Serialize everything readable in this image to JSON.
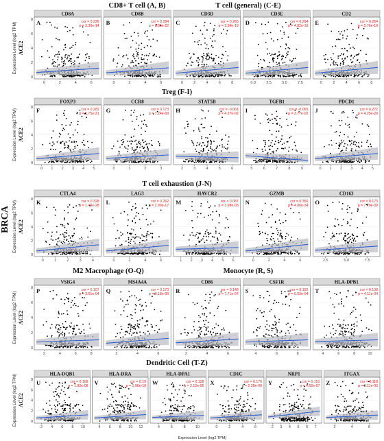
{
  "figure_label": "BRCA",
  "row_titles": [
    {
      "left": "CD8+ T cell (A, B)",
      "right": "T cell (general) (C-E)"
    },
    {
      "left": "Treg (F-I)",
      "right": ""
    },
    {
      "left": "T cell exhaustion (J-N)",
      "right": ""
    },
    {
      "left": "M2 Macrophage (O-Q)",
      "right": "Monocyte (R, S)"
    },
    {
      "left": "Dendritic Cell (T-Z)",
      "right": ""
    }
  ],
  "ylabel": "Expression Level (log2 TPM)",
  "y_gene": "ACE2",
  "xlabel": "Expression Level (log2 TPM)",
  "colors": {
    "points": "#000000",
    "fit": "#2f5fd0",
    "band": "#b9bcc4",
    "stats": "#e0201b",
    "strip": "#d9d9d9"
  },
  "chart_data": [
    {
      "type": "scatter",
      "letter": "A",
      "gene": "CD8A",
      "stat_cor": "cor = 0.226",
      "stat_p": "p = 3.36e-14",
      "ylim": [
        0,
        8
      ],
      "yticks": [
        "0",
        "2",
        "4",
        "6",
        "8"
      ],
      "xlim": [
        -0.5,
        7
      ],
      "xticks": [
        "0",
        "2",
        "4",
        "6"
      ],
      "fit": [
        0.6,
        1.2
      ],
      "seed": 11
    },
    {
      "type": "scatter",
      "letter": "B",
      "gene": "CD8B",
      "stat_cor": "cor = 0.284",
      "stat_p": "p = 8.86e-22",
      "ylim": [
        0,
        8
      ],
      "yticks": [],
      "xlim": [
        -0.5,
        6.5
      ],
      "xticks": [
        "0",
        "2",
        "4",
        "6"
      ],
      "fit": [
        0.55,
        1.25
      ],
      "seed": 12
    },
    {
      "type": "scatter",
      "letter": "C",
      "gene": "CD3D",
      "stat_cor": "cor = 0.265",
      "stat_p": "p = 3.54e-19",
      "ylim": [
        0,
        8
      ],
      "yticks": [],
      "xlim": [
        -0.5,
        8.5
      ],
      "xticks": [
        "0",
        "2",
        "4",
        "6",
        "8"
      ],
      "fit": [
        0.5,
        1.3
      ],
      "seed": 13
    },
    {
      "type": "scatter",
      "letter": "D",
      "gene": "CD3E",
      "stat_cor": "cor = 0.264",
      "stat_p": "p = 4.82e-19",
      "ylim": [
        0,
        8
      ],
      "yticks": [],
      "xlim": [
        -0.5,
        8.5
      ],
      "xticks": [
        "0.0",
        "2.5",
        "5.0",
        "7.5"
      ],
      "fit": [
        0.5,
        1.3
      ],
      "seed": 14
    },
    {
      "type": "scatter",
      "letter": "E",
      "gene": "CD2",
      "stat_cor": "cor = 0.264",
      "stat_p": "p = 5.76e-19",
      "ylim": [
        0,
        8
      ],
      "yticks": [],
      "xlim": [
        -0.5,
        8.5
      ],
      "xticks": [
        "0",
        "2",
        "4",
        "6",
        "8"
      ],
      "fit": [
        0.5,
        1.3
      ],
      "seed": 15
    },
    {
      "type": "scatter",
      "letter": "F",
      "gene": "FOXP3",
      "stat_cor": "cor = 0.282",
      "stat_p": "p = 1.75e-21",
      "ylim": [
        0,
        8
      ],
      "yticks": [
        "0",
        "2",
        "4",
        "6",
        "8"
      ],
      "xlim": [
        -0.5,
        5.5
      ],
      "xticks": [
        "0",
        "1",
        "2",
        "3",
        "4",
        "5"
      ],
      "fit": [
        0.55,
        1.3
      ],
      "seed": 21
    },
    {
      "type": "scatter",
      "letter": "G",
      "gene": "CCR8",
      "stat_cor": "cor = 0.173",
      "stat_p": "p = 7.24e-09",
      "ylim": [
        0,
        8
      ],
      "yticks": [],
      "xlim": [
        -0.5,
        3.5
      ],
      "xticks": [
        "0",
        "1",
        "2",
        "3"
      ],
      "fit": [
        0.6,
        1.1
      ],
      "seed": 22
    },
    {
      "type": "scatter",
      "letter": "H",
      "gene": "STAT5B",
      "stat_cor": "cor = -0.061",
      "stat_p": "p = 4.27e-02",
      "ylim": [
        0,
        8
      ],
      "yticks": [],
      "xlim": [
        1.5,
        7
      ],
      "xticks": [
        "2",
        "3",
        "4",
        "5",
        "6"
      ],
      "fit": [
        0.9,
        0.7
      ],
      "seed": 23
    },
    {
      "type": "scatter",
      "letter": "I",
      "gene": "TGFB1",
      "stat_cor": "cor = -0.065",
      "stat_p": "p = 3.77e-02",
      "ylim": [
        0,
        8
      ],
      "yticks": [],
      "xlim": [
        4,
        9.5
      ],
      "xticks": [
        "5",
        "6",
        "7",
        "8",
        "9"
      ],
      "fit": [
        1.0,
        0.3
      ],
      "seed": 24
    },
    {
      "type": "scatter",
      "letter": "J",
      "gene": "PDCD1",
      "stat_cor": "cor = 0.272",
      "stat_p": "p = 4.25e-20",
      "ylim": [
        0,
        8
      ],
      "yticks": [],
      "xlim": [
        -0.5,
        5.5
      ],
      "xticks": [
        "0",
        "1",
        "2",
        "3",
        "4",
        "5"
      ],
      "fit": [
        0.55,
        1.3
      ],
      "seed": 25
    },
    {
      "type": "scatter",
      "letter": "K",
      "gene": "CTLA4",
      "stat_cor": "cor = 0.328",
      "stat_p": "p = 1.40e-28",
      "ylim": [
        0,
        8
      ],
      "yticks": [
        "0",
        "2",
        "4",
        "6",
        "8"
      ],
      "xlim": [
        -0.5,
        5
      ],
      "xticks": [
        "0",
        "1",
        "2",
        "3",
        "4"
      ],
      "fit": [
        0.5,
        1.4
      ],
      "seed": 31
    },
    {
      "type": "scatter",
      "letter": "L",
      "gene": "LAG3",
      "stat_cor": "cor = 0.262",
      "stat_p": "p = 2.99e-17",
      "ylim": [
        0,
        8
      ],
      "yticks": [],
      "xlim": [
        -0.5,
        7
      ],
      "xticks": [
        "0",
        "2",
        "4",
        "6"
      ],
      "fit": [
        0.5,
        1.3
      ],
      "seed": 32
    },
    {
      "type": "scatter",
      "letter": "M",
      "gene": "HAVCR2",
      "stat_cor": "cor = 0.087",
      "stat_p": "p = 3.98e-03",
      "ylim": [
        0,
        8
      ],
      "yticks": [],
      "xlim": [
        0.5,
        6
      ],
      "xticks": [
        "1",
        "2",
        "3",
        "4",
        "5",
        "6"
      ],
      "fit": [
        0.75,
        1.0
      ],
      "seed": 33
    },
    {
      "type": "scatter",
      "letter": "N",
      "gene": "GZMB",
      "stat_cor": "cor = 0.356",
      "stat_p": "p = 4.06e-34",
      "ylim": [
        0,
        8
      ],
      "yticks": [],
      "xlim": [
        -0.5,
        8
      ],
      "xticks": [
        "0",
        "2",
        "4",
        "6"
      ],
      "fit": [
        0.5,
        1.45
      ],
      "seed": 34
    },
    {
      "type": "scatter",
      "letter": "O",
      "gene": "CD163",
      "stat_cor": "cor = 0.173",
      "stat_p": "p = 7.70e-09",
      "ylim": [
        0,
        8
      ],
      "yticks": [],
      "xlim": [
        1,
        8.5
      ],
      "xticks": [
        "2.5",
        "5.0",
        "7.5"
      ],
      "fit": [
        0.6,
        1.2
      ],
      "seed": 35
    },
    {
      "type": "scatter",
      "letter": "P",
      "gene": "VSIG4",
      "stat_cor": "cor = 0.107",
      "stat_p": "p = 3.61e-04",
      "ylim": [
        0,
        8
      ],
      "yticks": [
        "0",
        "2",
        "4",
        "6",
        "8"
      ],
      "xlim": [
        1,
        8.5
      ],
      "xticks": [
        "2",
        "4",
        "6",
        "8"
      ],
      "fit": [
        0.75,
        1.05
      ],
      "seed": 41
    },
    {
      "type": "scatter",
      "letter": "Q",
      "gene": "MS4A4A",
      "stat_cor": "cor = 0.173",
      "stat_p": "p = 8.18e-09",
      "ylim": [
        0,
        8
      ],
      "yticks": [],
      "xlim": [
        0,
        7
      ],
      "xticks": [
        "2",
        "4",
        "6"
      ],
      "fit": [
        0.6,
        1.25
      ],
      "seed": 42
    },
    {
      "type": "scatter",
      "letter": "R",
      "gene": "CD86",
      "stat_cor": "cor = 0.148",
      "stat_p": "p = 7.71e-07",
      "ylim": [
        0,
        8
      ],
      "yticks": [],
      "xlim": [
        1,
        8
      ],
      "xticks": [
        "2",
        "4",
        "6"
      ],
      "fit": [
        0.65,
        1.15
      ],
      "seed": 43
    },
    {
      "type": "scatter",
      "letter": "S",
      "gene": "CSF1R",
      "stat_cor": "cor = 0.102",
      "stat_p": "p = 6.63e-04",
      "ylim": [
        0,
        8
      ],
      "yticks": [],
      "xlim": [
        2,
        9.5
      ],
      "xticks": [
        "4",
        "6",
        "8"
      ],
      "fit": [
        0.75,
        1.05
      ],
      "seed": 44
    },
    {
      "type": "scatter",
      "letter": "T",
      "gene": "HLA-DPB1",
      "stat_cor": "cor = 0.108",
      "stat_p": "p = 4.11e-04",
      "ylim": [
        0,
        8
      ],
      "yticks": [],
      "xlim": [
        3,
        12
      ],
      "xticks": [
        "4",
        "6",
        "8",
        "10"
      ],
      "fit": [
        0.8,
        1.05
      ],
      "seed": 45
    },
    {
      "type": "scatter",
      "letter": "U",
      "gene": "HLA-DQB1",
      "stat_cor": "cor = 0.168",
      "stat_p": "p = 1.92e-08",
      "ylim": [
        0,
        8
      ],
      "yticks": [
        "0",
        "2",
        "4",
        "6",
        "8"
      ],
      "xlim": [
        1,
        11
      ],
      "xticks": [
        "2",
        "4",
        "6",
        "8",
        "10"
      ],
      "fit": [
        0.6,
        1.2
      ],
      "seed": 51
    },
    {
      "type": "scatter",
      "letter": "V",
      "gene": "HLA-DRA",
      "stat_cor": "cor = 0.19",
      "stat_p": "p = 1.96e-10",
      "ylim": [
        0,
        8
      ],
      "yticks": [],
      "xlim": [
        3,
        13
      ],
      "xticks": [
        "4",
        "6",
        "8",
        "10",
        "12"
      ],
      "fit": [
        0.6,
        1.25
      ],
      "seed": 52
    },
    {
      "type": "scatter",
      "letter": "W",
      "gene": "HLA-DPA1",
      "stat_cor": "cor = 0.128",
      "stat_p": "p = 2.12e-05",
      "ylim": [
        0,
        8
      ],
      "yticks": [],
      "xlim": [
        3,
        12
      ],
      "xticks": [
        "4",
        "6",
        "8",
        "10"
      ],
      "fit": [
        0.7,
        1.1
      ],
      "seed": 53
    },
    {
      "type": "scatter",
      "letter": "X",
      "gene": "CD1C",
      "stat_cor": "cor = 0.176",
      "stat_p": "p = 2.28e-09",
      "ylim": [
        0,
        8
      ],
      "yticks": [],
      "xlim": [
        -0.5,
        6
      ],
      "xticks": [
        "0",
        "2",
        "4",
        "6"
      ],
      "fit": [
        0.6,
        1.2
      ],
      "seed": 54
    },
    {
      "type": "scatter",
      "letter": "Y",
      "gene": "NRP1",
      "stat_cor": "cor = 0.151",
      "stat_p": "p = 4.62e-07",
      "ylim": [
        0,
        8
      ],
      "yticks": [],
      "xlim": [
        1.5,
        7.5
      ],
      "xticks": [
        "2",
        "3",
        "4",
        "5",
        "6",
        "7"
      ],
      "fit": [
        0.8,
        1.9
      ],
      "seed": 55
    },
    {
      "type": "scatter",
      "letter": "Z",
      "gene": "ITGAX",
      "stat_cor": "cor = 0.118",
      "stat_p": "p = 9.11e-05",
      "ylim": [
        0,
        8
      ],
      "yticks": [],
      "xlim": [
        1,
        7.5
      ],
      "xticks": [
        "2",
        "4",
        "6"
      ],
      "fit": [
        0.7,
        1.15
      ],
      "seed": 56
    }
  ]
}
